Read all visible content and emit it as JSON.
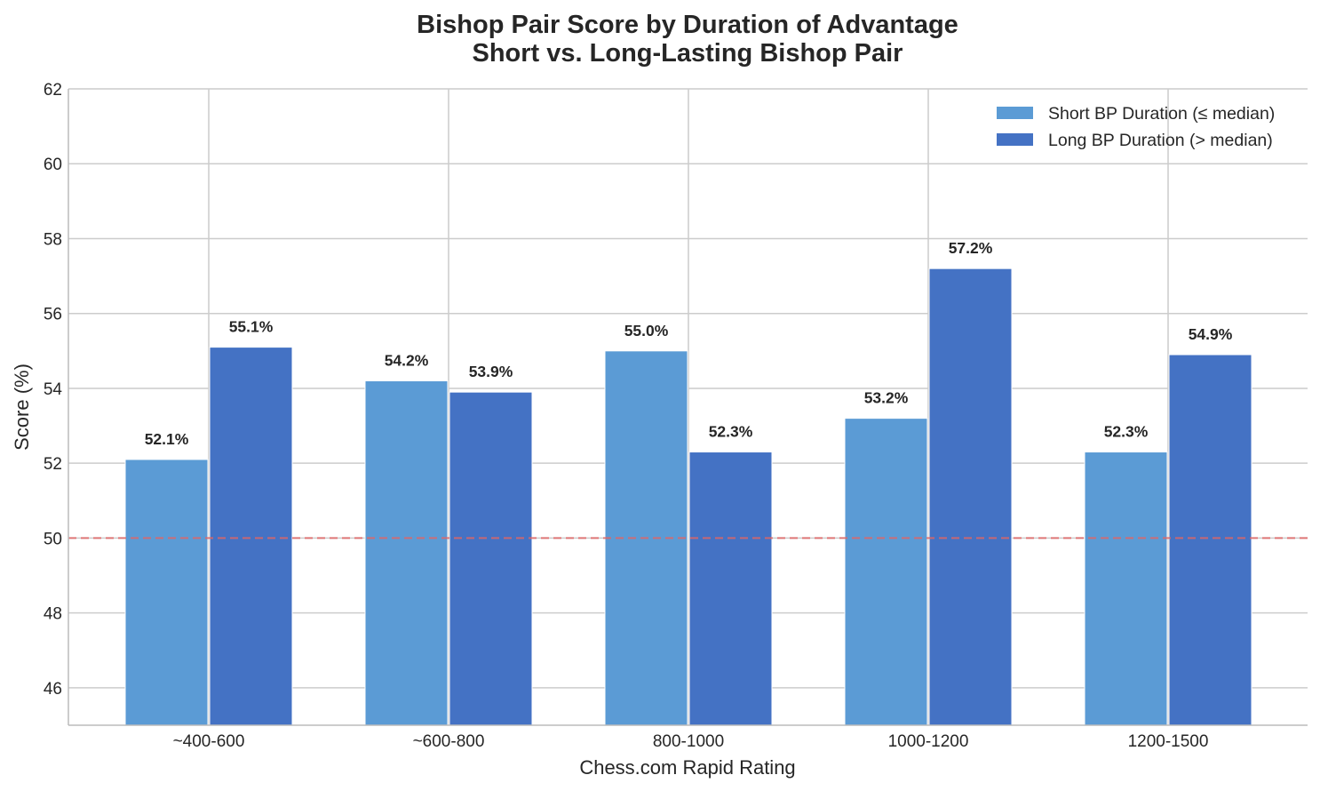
{
  "chart_data": {
    "type": "bar",
    "title": "Bishop Pair Score by Duration of Advantage",
    "subtitle": "Short vs. Long-Lasting Bishop Pair",
    "xlabel": "Chess.com Rapid Rating",
    "ylabel": "Score (%)",
    "categories": [
      "~400-600",
      "~600-800",
      "800-1000",
      "1000-1200",
      "1200-1500"
    ],
    "series": [
      {
        "name": "Short BP Duration (≤ median)",
        "values": [
          52.1,
          54.2,
          55.0,
          53.2,
          52.3
        ],
        "labels": [
          "52.1%",
          "54.2%",
          "55.0%",
          "53.2%",
          "52.3%"
        ],
        "color": "#5b9bd5"
      },
      {
        "name": "Long BP Duration (> median)",
        "values": [
          55.1,
          53.9,
          52.3,
          57.2,
          54.9
        ],
        "labels": [
          "55.1%",
          "53.9%",
          "52.3%",
          "57.2%",
          "54.9%"
        ],
        "color": "#4472c4"
      }
    ],
    "ylim": [
      45,
      62
    ],
    "yticks": [
      46,
      48,
      50,
      52,
      54,
      56,
      58,
      60,
      62
    ],
    "reference_line": {
      "y": 50,
      "style": "dashed",
      "color": "#e06666"
    },
    "grid": true,
    "legend_position": "top-right"
  }
}
